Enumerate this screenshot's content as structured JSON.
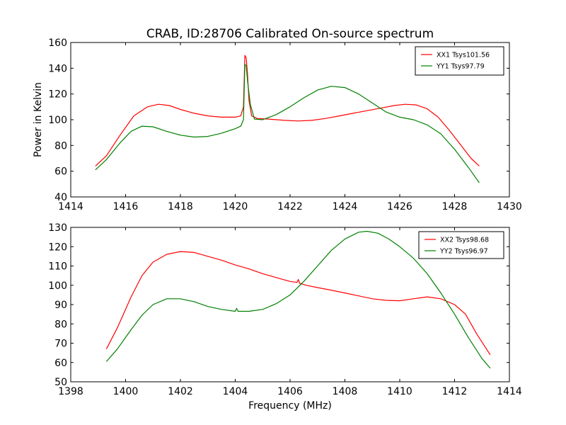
{
  "figure": {
    "title": "CRAB, ID:28706 Calibrated On-source spectrum"
  },
  "chart_data": [
    {
      "type": "line",
      "ylabel": "Power in Kelvin",
      "xlabel": "",
      "xlim": [
        1414,
        1430
      ],
      "ylim": [
        40,
        160
      ],
      "xticks": [
        1414,
        1416,
        1418,
        1420,
        1422,
        1424,
        1426,
        1428,
        1430
      ],
      "yticks": [
        40,
        60,
        80,
        100,
        120,
        140,
        160
      ],
      "grid": false,
      "legend_position": "top-right",
      "series": [
        {
          "name": "XX1 Tsys101.56",
          "color": "#ff0000",
          "points": [
            [
              1414.9,
              64
            ],
            [
              1415.3,
              72
            ],
            [
              1415.8,
              88
            ],
            [
              1416.3,
              103
            ],
            [
              1416.8,
              110
            ],
            [
              1417.2,
              112
            ],
            [
              1417.6,
              111
            ],
            [
              1418.0,
              108
            ],
            [
              1418.5,
              105
            ],
            [
              1419.0,
              103
            ],
            [
              1419.5,
              102
            ],
            [
              1420.0,
              102
            ],
            [
              1420.2,
              103
            ],
            [
              1420.3,
              110
            ],
            [
              1420.35,
              150
            ],
            [
              1420.4,
              148
            ],
            [
              1420.45,
              135
            ],
            [
              1420.5,
              115
            ],
            [
              1420.6,
              103
            ],
            [
              1420.8,
              101
            ],
            [
              1421.2,
              100.5
            ],
            [
              1421.8,
              99.5
            ],
            [
              1422.3,
              99
            ],
            [
              1422.8,
              99.5
            ],
            [
              1423.3,
              101
            ],
            [
              1423.8,
              103
            ],
            [
              1424.3,
              105
            ],
            [
              1424.8,
              107
            ],
            [
              1425.3,
              109
            ],
            [
              1425.8,
              111
            ],
            [
              1426.2,
              112
            ],
            [
              1426.6,
              111.5
            ],
            [
              1427.0,
              108.5
            ],
            [
              1427.4,
              102
            ],
            [
              1427.8,
              92
            ],
            [
              1428.2,
              81
            ],
            [
              1428.6,
              70
            ],
            [
              1428.9,
              64
            ]
          ]
        },
        {
          "name": "YY1 Tsys97.79",
          "color": "#008000",
          "points": [
            [
              1414.9,
              61
            ],
            [
              1415.3,
              69
            ],
            [
              1415.8,
              82
            ],
            [
              1416.2,
              91
            ],
            [
              1416.6,
              95
            ],
            [
              1417.0,
              94.5
            ],
            [
              1417.5,
              91
            ],
            [
              1418.0,
              88
            ],
            [
              1418.5,
              86.5
            ],
            [
              1419.0,
              87
            ],
            [
              1419.5,
              89.5
            ],
            [
              1420.0,
              93
            ],
            [
              1420.2,
              95
            ],
            [
              1420.3,
              100
            ],
            [
              1420.35,
              143
            ],
            [
              1420.4,
              142
            ],
            [
              1420.45,
              130
            ],
            [
              1420.55,
              112
            ],
            [
              1420.7,
              100.5
            ],
            [
              1421.0,
              100
            ],
            [
              1421.5,
              104
            ],
            [
              1422.0,
              110
            ],
            [
              1422.5,
              117
            ],
            [
              1423.0,
              123
            ],
            [
              1423.5,
              126
            ],
            [
              1424.0,
              125
            ],
            [
              1424.5,
              120
            ],
            [
              1425.0,
              113
            ],
            [
              1425.5,
              106
            ],
            [
              1426.0,
              102
            ],
            [
              1426.5,
              100
            ],
            [
              1427.0,
              96
            ],
            [
              1427.5,
              89
            ],
            [
              1428.0,
              77
            ],
            [
              1428.5,
              63
            ],
            [
              1428.9,
              51
            ]
          ]
        }
      ]
    },
    {
      "type": "line",
      "ylabel": "",
      "xlabel": "Frequency (MHz)",
      "xlim": [
        1398,
        1414
      ],
      "ylim": [
        50,
        130
      ],
      "xticks": [
        1398,
        1400,
        1402,
        1404,
        1406,
        1408,
        1410,
        1412,
        1414
      ],
      "yticks": [
        50,
        60,
        70,
        80,
        90,
        100,
        110,
        120,
        130
      ],
      "grid": false,
      "legend_position": "top-right",
      "series": [
        {
          "name": "XX2 Tsys98.68",
          "color": "#ff0000",
          "points": [
            [
              1399.3,
              67
            ],
            [
              1399.7,
              78
            ],
            [
              1400.2,
              94
            ],
            [
              1400.6,
              105
            ],
            [
              1401.0,
              112
            ],
            [
              1401.5,
              116
            ],
            [
              1402.0,
              117.5
            ],
            [
              1402.5,
              117
            ],
            [
              1403.0,
              115
            ],
            [
              1403.5,
              113
            ],
            [
              1404.0,
              110.5
            ],
            [
              1404.5,
              108.5
            ],
            [
              1405.0,
              106
            ],
            [
              1405.5,
              104
            ],
            [
              1406.0,
              102
            ],
            [
              1406.25,
              101.5
            ],
            [
              1406.3,
              103
            ],
            [
              1406.35,
              101
            ],
            [
              1406.6,
              100
            ],
            [
              1407.0,
              98.8
            ],
            [
              1407.5,
              97.5
            ],
            [
              1408.0,
              96
            ],
            [
              1408.5,
              94.5
            ],
            [
              1409.0,
              93
            ],
            [
              1409.5,
              92.2
            ],
            [
              1410.0,
              92
            ],
            [
              1410.5,
              93
            ],
            [
              1411.0,
              94
            ],
            [
              1411.5,
              93
            ],
            [
              1412.0,
              90
            ],
            [
              1412.4,
              85
            ],
            [
              1412.8,
              75
            ],
            [
              1413.3,
              64
            ]
          ]
        },
        {
          "name": "YY2 Tsys96.97",
          "color": "#008000",
          "points": [
            [
              1399.3,
              60.5
            ],
            [
              1399.7,
              67
            ],
            [
              1400.2,
              77
            ],
            [
              1400.6,
              84.5
            ],
            [
              1401.0,
              90
            ],
            [
              1401.5,
              93
            ],
            [
              1402.0,
              93
            ],
            [
              1402.5,
              91.5
            ],
            [
              1403.0,
              89
            ],
            [
              1403.5,
              87.5
            ],
            [
              1404.0,
              86.5
            ],
            [
              1404.05,
              88
            ],
            [
              1404.1,
              86.5
            ],
            [
              1404.5,
              86.5
            ],
            [
              1405.0,
              87.5
            ],
            [
              1405.5,
              90.5
            ],
            [
              1406.0,
              95
            ],
            [
              1406.5,
              102
            ],
            [
              1407.0,
              110
            ],
            [
              1407.5,
              118
            ],
            [
              1408.0,
              124
            ],
            [
              1408.5,
              127.5
            ],
            [
              1408.8,
              128
            ],
            [
              1409.2,
              127
            ],
            [
              1409.6,
              124
            ],
            [
              1410.0,
              120
            ],
            [
              1410.5,
              114
            ],
            [
              1411.0,
              106
            ],
            [
              1411.5,
              96
            ],
            [
              1412.0,
              85
            ],
            [
              1412.5,
              73
            ],
            [
              1413.0,
              62
            ],
            [
              1413.3,
              57
            ]
          ]
        }
      ]
    }
  ]
}
